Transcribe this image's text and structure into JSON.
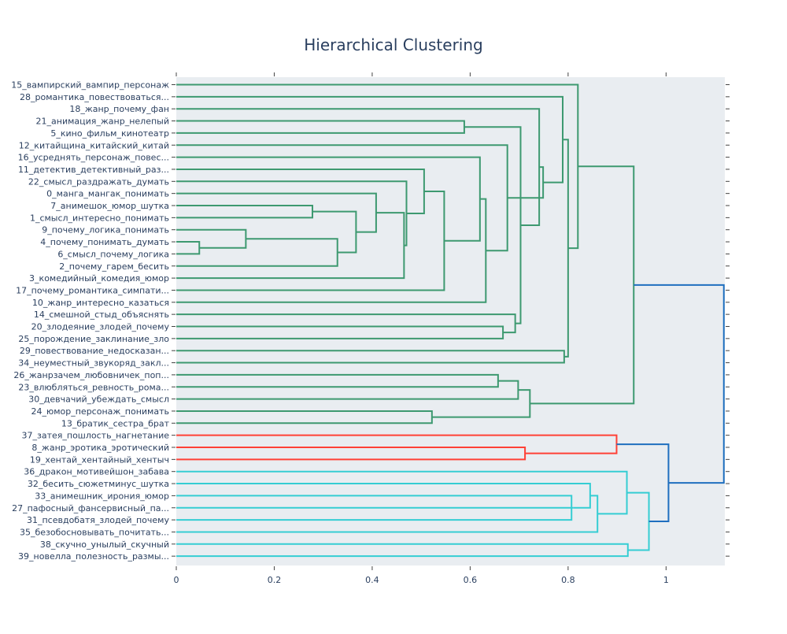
{
  "chart_data": {
    "type": "dendrogram",
    "title": "Hierarchical Clustering",
    "xlabel": "",
    "ylabel": "",
    "xlim": [
      0,
      1.12
    ],
    "x_ticks": [
      0,
      0.2,
      0.4,
      0.6,
      0.8,
      1
    ],
    "tick_labels": [
      "0",
      "0.2",
      "0.4",
      "0.6",
      "0.8",
      "1"
    ],
    "colors": {
      "green": "#3d9970",
      "red": "#ff4136",
      "cyan": "#35cdd3",
      "blue": "#1f6fbf",
      "plot_bg": "#e9edf1"
    },
    "leaves": [
      "15_вампирский_вампир_персонаж",
      "28_романтика_повествоваться...",
      "18_жанр_почему_фан",
      "21_анимация_жанр_нелепый",
      "5_кино_фильм_кинотеатр",
      "12_китайщина_китайский_китай",
      "16_усреднять_персонаж_повес...",
      "11_детектив_детективный_раз...",
      "22_смысл_раздражать_думать",
      "0_манга_мангак_понимать",
      "7_анимешок_юмор_шутка",
      "1_смысл_интересно_понимать",
      "9_почему_логика_понимать",
      "4_почему_понимать_думать",
      "6_смысл_почему_логика",
      "2_почему_гарем_бесить",
      "3_комедийный_комедия_юмор",
      "17_почему_романтика_симпати...",
      "10_жанр_интересно_казаться",
      "14_смешной_стыд_объяснять",
      "20_злодеяние_злодей_почему",
      "25_порождение_заклинание_зло",
      "29_повествование_недосказан...",
      "34_неуместный_звукоряд_закл...",
      "26_жанрзачем_любовничек_поп...",
      "23_влюбляться_ревность_рома...",
      "30_девчачий_убеждать_смысл",
      "24_юмор_персонаж_понимать",
      "13_братик_сестра_брат",
      "37_затея_пошлость_нагнетание",
      "8_жанр_эротика_эротический",
      "19_хентай_хентайный_хентыч",
      "36_дракон_мотивейшон_забава",
      "32_бесить_сюжетминус_шутка",
      "33_анимешник_ирония_юмор",
      "27_пафосный_фансервисный_па...",
      "31_псевдобатя_злодей_почему",
      "35_безобосновывать_почитать...",
      "38_скучно_унылый_скучный",
      "39_новелла_полезность_размы..."
    ],
    "links": [
      {
        "a": 13,
        "b": 14,
        "h": 0.047,
        "color": "green"
      },
      {
        "a": 12,
        "b": 100,
        "h": 0.142,
        "color": "green"
      },
      {
        "a": 10,
        "b": 11,
        "h": 0.278,
        "color": "green"
      },
      {
        "a": 101,
        "b": 15,
        "h": 0.329,
        "color": "green"
      },
      {
        "a": 102,
        "b": 103,
        "h": 0.367,
        "color": "green"
      },
      {
        "a": 9,
        "b": 104,
        "h": 0.408,
        "color": "green"
      },
      {
        "a": 105,
        "b": 16,
        "h": 0.465,
        "color": "green"
      },
      {
        "a": 8,
        "b": 106,
        "h": 0.47,
        "color": "green"
      },
      {
        "a": 7,
        "b": 107,
        "h": 0.506,
        "color": "green"
      },
      {
        "a": 108,
        "b": 17,
        "h": 0.547,
        "color": "green"
      },
      {
        "a": 3,
        "b": 4,
        "h": 0.588,
        "color": "green"
      },
      {
        "a": 6,
        "b": 109,
        "h": 0.62,
        "color": "green"
      },
      {
        "a": 111,
        "b": 18,
        "h": 0.632,
        "color": "green"
      },
      {
        "a": 20,
        "b": 21,
        "h": 0.667,
        "color": "green"
      },
      {
        "a": 5,
        "b": 112,
        "h": 0.676,
        "color": "green"
      },
      {
        "a": 113,
        "b": 19,
        "h": 0.692,
        "color": "green"
      },
      {
        "a": 110,
        "b": 115,
        "h": 0.703,
        "color": "green"
      },
      {
        "a": 2,
        "b": 116,
        "h": 0.741,
        "color": "green"
      },
      {
        "a": 117,
        "b": 114,
        "h": 0.749,
        "color": "green"
      },
      {
        "a": 1,
        "b": 118,
        "h": 0.789,
        "color": "green"
      },
      {
        "a": 22,
        "b": 23,
        "h": 0.792,
        "color": "green"
      },
      {
        "a": 120,
        "b": 119,
        "h": 0.8,
        "color": "green"
      },
      {
        "a": 0,
        "b": 121,
        "h": 0.82,
        "color": "green"
      },
      {
        "a": 24,
        "b": 25,
        "h": 0.657,
        "color": "green"
      },
      {
        "a": 123,
        "b": 26,
        "h": 0.698,
        "color": "green"
      },
      {
        "a": 27,
        "b": 28,
        "h": 0.522,
        "color": "green"
      },
      {
        "a": 124,
        "b": 125,
        "h": 0.722,
        "color": "green"
      },
      {
        "a": 122,
        "b": 126,
        "h": 0.934,
        "color": "green"
      },
      {
        "a": 30,
        "b": 31,
        "h": 0.712,
        "color": "red"
      },
      {
        "a": 29,
        "b": 128,
        "h": 0.899,
        "color": "red"
      },
      {
        "a": 34,
        "b": 36,
        "h": 0.807,
        "color": "cyan"
      },
      {
        "a": 35,
        "b": 130,
        "h": 0.811,
        "color": "cyan"
      },
      {
        "a": 33,
        "b": 131,
        "h": 0.845,
        "color": "cyan"
      },
      {
        "a": 132,
        "b": 37,
        "h": 0.86,
        "color": "cyan"
      },
      {
        "a": 32,
        "b": 133,
        "h": 0.92,
        "color": "cyan"
      },
      {
        "a": 38,
        "b": 39,
        "h": 0.922,
        "color": "cyan"
      },
      {
        "a": 134,
        "b": 135,
        "h": 0.965,
        "color": "cyan"
      },
      {
        "a": 129,
        "b": 136,
        "h": 1.005,
        "color": "blue"
      },
      {
        "a": 127,
        "b": 137,
        "h": 1.118,
        "color": "blue"
      }
    ]
  }
}
